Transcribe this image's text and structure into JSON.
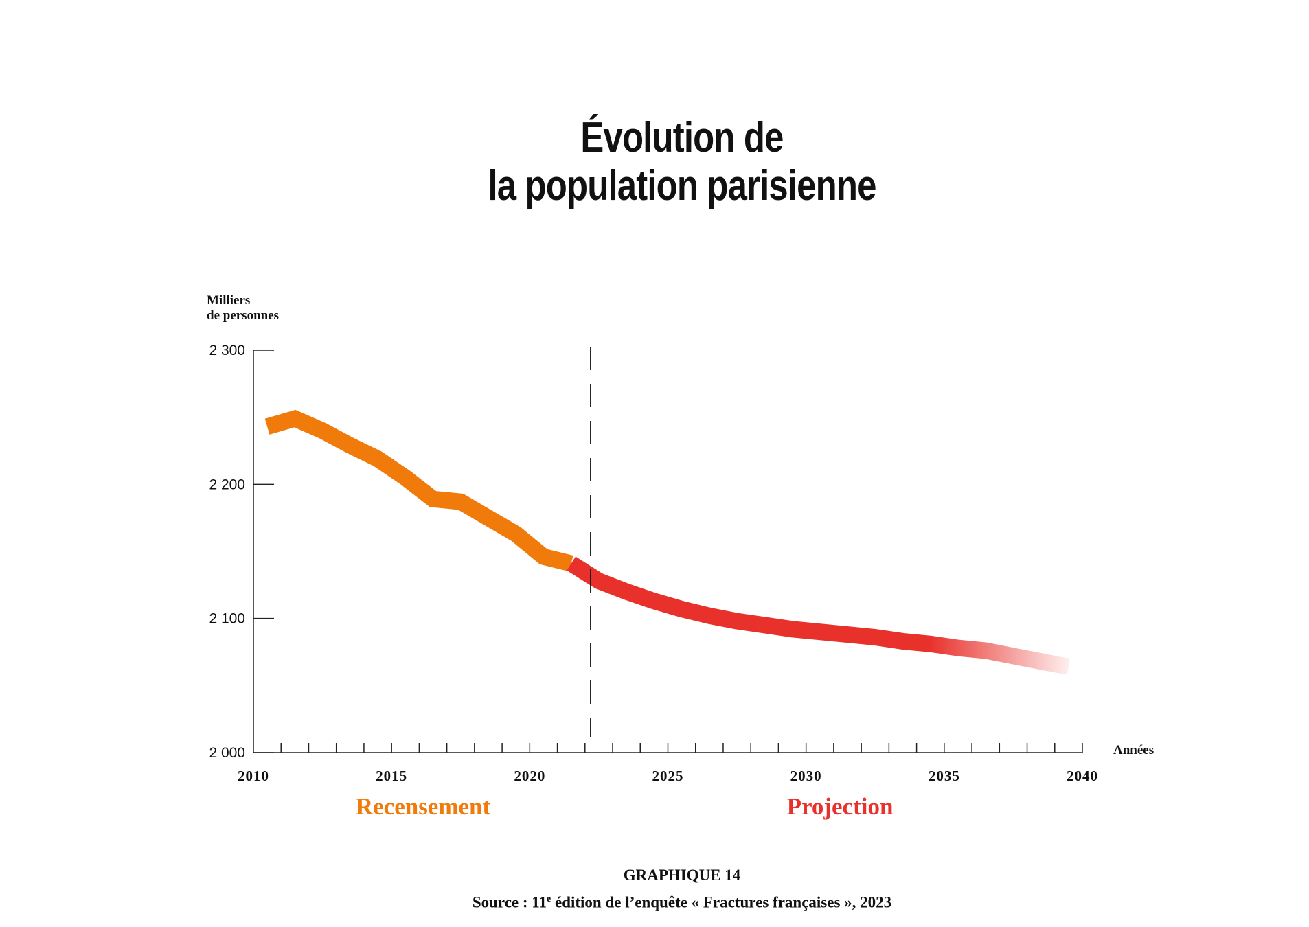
{
  "title": [
    "Évolution de",
    "la population parisienne"
  ],
  "caption": {
    "label": "GRAPHIQUE 14",
    "source_prefix": "Source : 11",
    "source_superscript": "e",
    "source_suffix": " édition de l’enquête « Fractures françaises », 2023"
  },
  "colors": {
    "recensement": "#f07a0a",
    "projection": "#e8312b",
    "axis": "#222222"
  },
  "chart_data": {
    "type": "line",
    "ylabel": [
      "Milliers",
      "de personnes"
    ],
    "xlabel": "Années",
    "xlim": [
      2010,
      2040
    ],
    "ylim": [
      2000,
      2300
    ],
    "x_ticks": [
      2010,
      2015,
      2020,
      2025,
      2030,
      2035,
      2040
    ],
    "x_tick_labels": [
      "2010",
      "2015",
      "2020",
      "2025",
      "2030",
      "2035",
      "2040"
    ],
    "y_ticks": [
      2000,
      2100,
      2200,
      2300
    ],
    "y_tick_labels": [
      "2 000",
      "2 100",
      "2 200",
      "2 300"
    ],
    "grid": false,
    "divider_year": 2022.2,
    "series": [
      {
        "name": "Recensement",
        "x": [
          2010.5,
          2011.5,
          2012.5,
          2013.5,
          2014.5,
          2015.5,
          2016.5,
          2017.5,
          2018.5,
          2019.5,
          2020.5,
          2021.5
        ],
        "y": [
          2243,
          2249,
          2240,
          2229,
          2219,
          2205,
          2189,
          2187,
          2175,
          2163,
          2146,
          2141
        ]
      },
      {
        "name": "Projection",
        "x": [
          2021.5,
          2022.5,
          2023.5,
          2024.5,
          2025.5,
          2026.5,
          2027.5,
          2028.5,
          2029.5,
          2030.5,
          2031.5,
          2032.5,
          2033.5,
          2034.5,
          2035.5,
          2036.5,
          2037.5,
          2038.5,
          2039.5
        ],
        "y": [
          2141,
          2128,
          2120,
          2113,
          2107,
          2102,
          2098,
          2095,
          2092,
          2090,
          2088,
          2086,
          2083,
          2081,
          2078,
          2076,
          2072,
          2068,
          2064
        ]
      }
    ]
  }
}
